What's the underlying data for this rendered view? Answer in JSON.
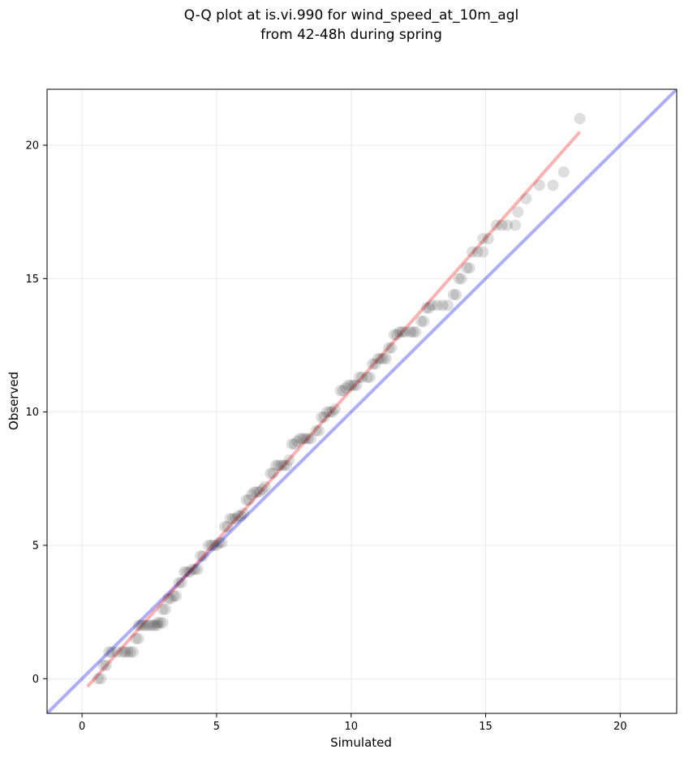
{
  "chart_data": {
    "type": "scatter",
    "title_lines": [
      "Q-Q plot at is.vi.990 for wind_speed_at_10m_agl",
      "from 42-48h during spring"
    ],
    "xlabel": "Simulated",
    "ylabel": "Observed",
    "xlim": [
      -1.3,
      22.1
    ],
    "ylim": [
      -1.3,
      22.1
    ],
    "x_ticks": [
      0,
      5,
      10,
      15,
      20
    ],
    "y_ticks": [
      0,
      5,
      10,
      15,
      20
    ],
    "grid": true,
    "points": [
      [
        0.6,
        0.0
      ],
      [
        0.7,
        0.0
      ],
      [
        0.8,
        0.5
      ],
      [
        0.9,
        0.5
      ],
      [
        1.0,
        1.0
      ],
      [
        1.1,
        1.0
      ],
      [
        1.3,
        1.0
      ],
      [
        1.5,
        1.0
      ],
      [
        1.6,
        1.0
      ],
      [
        1.7,
        1.0
      ],
      [
        1.8,
        1.0
      ],
      [
        1.9,
        1.0
      ],
      [
        2.0,
        1.5
      ],
      [
        2.1,
        1.5
      ],
      [
        2.1,
        2.0
      ],
      [
        2.2,
        2.0
      ],
      [
        2.3,
        2.0
      ],
      [
        2.4,
        2.0
      ],
      [
        2.5,
        2.0
      ],
      [
        2.6,
        2.0
      ],
      [
        2.7,
        2.0
      ],
      [
        2.8,
        2.0
      ],
      [
        2.8,
        2.1
      ],
      [
        2.9,
        2.1
      ],
      [
        3.0,
        2.1
      ],
      [
        3.0,
        2.6
      ],
      [
        3.1,
        2.6
      ],
      [
        3.2,
        3.0
      ],
      [
        3.3,
        3.0
      ],
      [
        3.4,
        3.1
      ],
      [
        3.5,
        3.1
      ],
      [
        3.6,
        3.6
      ],
      [
        3.7,
        3.6
      ],
      [
        3.8,
        4.0
      ],
      [
        3.9,
        4.0
      ],
      [
        4.0,
        4.0
      ],
      [
        4.1,
        4.1
      ],
      [
        4.2,
        4.1
      ],
      [
        4.3,
        4.1
      ],
      [
        4.4,
        4.6
      ],
      [
        4.5,
        4.6
      ],
      [
        4.7,
        5.0
      ],
      [
        4.8,
        5.0
      ],
      [
        4.9,
        5.0
      ],
      [
        5.0,
        5.0
      ],
      [
        5.1,
        5.1
      ],
      [
        5.2,
        5.1
      ],
      [
        5.3,
        5.7
      ],
      [
        5.4,
        5.7
      ],
      [
        5.5,
        6.0
      ],
      [
        5.6,
        6.0
      ],
      [
        5.7,
        6.0
      ],
      [
        5.8,
        6.1
      ],
      [
        5.9,
        6.1
      ],
      [
        6.0,
        6.2
      ],
      [
        6.1,
        6.7
      ],
      [
        6.2,
        6.7
      ],
      [
        6.3,
        6.9
      ],
      [
        6.4,
        7.0
      ],
      [
        6.5,
        7.0
      ],
      [
        6.6,
        7.0
      ],
      [
        6.7,
        7.1
      ],
      [
        6.8,
        7.2
      ],
      [
        7.0,
        7.7
      ],
      [
        7.1,
        7.7
      ],
      [
        7.2,
        8.0
      ],
      [
        7.3,
        8.0
      ],
      [
        7.4,
        8.0
      ],
      [
        7.5,
        8.0
      ],
      [
        7.6,
        8.0
      ],
      [
        7.7,
        8.2
      ],
      [
        7.8,
        8.8
      ],
      [
        7.9,
        8.8
      ],
      [
        8.0,
        8.9
      ],
      [
        8.1,
        9.0
      ],
      [
        8.2,
        9.0
      ],
      [
        8.3,
        9.0
      ],
      [
        8.4,
        9.0
      ],
      [
        8.5,
        9.0
      ],
      [
        8.7,
        9.3
      ],
      [
        8.8,
        9.3
      ],
      [
        8.9,
        9.8
      ],
      [
        9.0,
        9.8
      ],
      [
        9.1,
        10.0
      ],
      [
        9.2,
        10.0
      ],
      [
        9.3,
        10.0
      ],
      [
        9.4,
        10.1
      ],
      [
        9.6,
        10.8
      ],
      [
        9.7,
        10.8
      ],
      [
        9.8,
        10.9
      ],
      [
        9.9,
        11.0
      ],
      [
        10.0,
        11.0
      ],
      [
        10.1,
        11.0
      ],
      [
        10.2,
        11.0
      ],
      [
        10.3,
        11.3
      ],
      [
        10.4,
        11.3
      ],
      [
        10.6,
        11.3
      ],
      [
        10.7,
        11.3
      ],
      [
        10.8,
        11.8
      ],
      [
        10.9,
        11.8
      ],
      [
        11.0,
        12.0
      ],
      [
        11.1,
        12.0
      ],
      [
        11.2,
        12.0
      ],
      [
        11.3,
        12.0
      ],
      [
        11.4,
        12.4
      ],
      [
        11.5,
        12.4
      ],
      [
        11.6,
        12.9
      ],
      [
        11.7,
        12.9
      ],
      [
        11.8,
        13.0
      ],
      [
        11.9,
        13.0
      ],
      [
        12.0,
        13.0
      ],
      [
        12.2,
        13.0
      ],
      [
        12.3,
        13.0
      ],
      [
        12.4,
        13.0
      ],
      [
        12.6,
        13.4
      ],
      [
        12.7,
        13.4
      ],
      [
        12.8,
        13.9
      ],
      [
        12.9,
        13.9
      ],
      [
        13.0,
        14.0
      ],
      [
        13.2,
        14.0
      ],
      [
        13.4,
        14.0
      ],
      [
        13.6,
        14.0
      ],
      [
        13.8,
        14.4
      ],
      [
        13.9,
        14.4
      ],
      [
        14.0,
        15.0
      ],
      [
        14.1,
        15.0
      ],
      [
        14.3,
        15.4
      ],
      [
        14.4,
        15.4
      ],
      [
        14.5,
        16.0
      ],
      [
        14.7,
        16.0
      ],
      [
        14.9,
        16.0
      ],
      [
        14.9,
        16.5
      ],
      [
        15.1,
        16.5
      ],
      [
        15.4,
        17.0
      ],
      [
        15.6,
        17.0
      ],
      [
        15.8,
        17.0
      ],
      [
        16.1,
        17.0
      ],
      [
        16.2,
        17.5
      ],
      [
        16.5,
        18.0
      ],
      [
        17.0,
        18.5
      ],
      [
        17.5,
        18.5
      ],
      [
        17.9,
        19.0
      ],
      [
        18.5,
        21.0
      ]
    ],
    "reference_line": {
      "from": [
        -1.3,
        -1.3
      ],
      "to": [
        22.1,
        22.1
      ],
      "color": "#0000ee"
    },
    "fit_line": {
      "from": [
        0.2,
        -0.3
      ],
      "to": [
        18.5,
        20.5
      ],
      "color": "#ee1111"
    }
  }
}
